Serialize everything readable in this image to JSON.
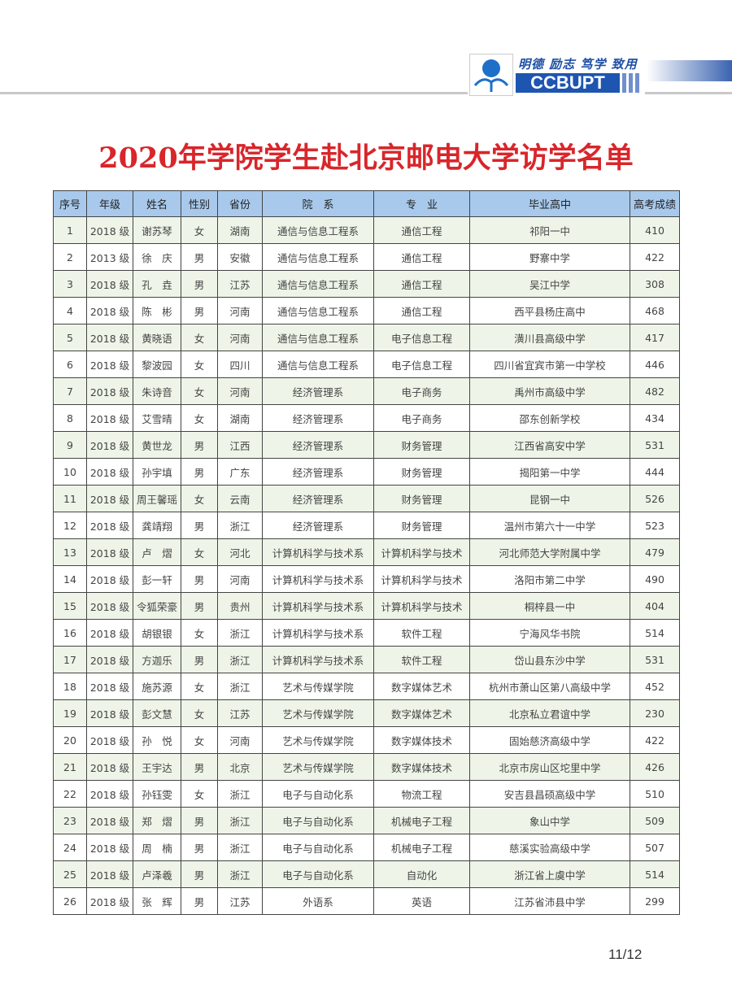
{
  "header": {
    "motto": "明德 励志 笃学 致用",
    "brand": "CCBUPT",
    "brand_color": "#1e55b0"
  },
  "title": "2020年学院学生赴北京邮电大学访学名单",
  "title_color": "#d8262b",
  "table": {
    "columns": [
      "序号",
      "年级",
      "姓名",
      "性别",
      "省份",
      "院　系",
      "专　业",
      "毕业高中",
      "高考成绩"
    ],
    "rows": [
      [
        "1",
        "2018 级",
        "谢苏琴",
        "女",
        "湖南",
        "通信与信息工程系",
        "通信工程",
        "祁阳一中",
        "410"
      ],
      [
        "2",
        "2013 级",
        "徐　庆",
        "男",
        "安徽",
        "通信与信息工程系",
        "通信工程",
        "野寨中学",
        "422"
      ],
      [
        "3",
        "2018 级",
        "孔　垚",
        "男",
        "江苏",
        "通信与信息工程系",
        "通信工程",
        "吴江中学",
        "308"
      ],
      [
        "4",
        "2018 级",
        "陈　彬",
        "男",
        "河南",
        "通信与信息工程系",
        "通信工程",
        "西平县杨庄高中",
        "468"
      ],
      [
        "5",
        "2018 级",
        "黄晓语",
        "女",
        "河南",
        "通信与信息工程系",
        "电子信息工程",
        "潢川县高级中学",
        "417"
      ],
      [
        "6",
        "2018 级",
        "黎波园",
        "女",
        "四川",
        "通信与信息工程系",
        "电子信息工程",
        "四川省宜宾市第一中学校",
        "446"
      ],
      [
        "7",
        "2018 级",
        "朱诗音",
        "女",
        "河南",
        "经济管理系",
        "电子商务",
        "禹州市高级中学",
        "482"
      ],
      [
        "8",
        "2018 级",
        "艾雪晴",
        "女",
        "湖南",
        "经济管理系",
        "电子商务",
        "邵东创新学校",
        "434"
      ],
      [
        "9",
        "2018 级",
        "黄世龙",
        "男",
        "江西",
        "经济管理系",
        "财务管理",
        "江西省高安中学",
        "531"
      ],
      [
        "10",
        "2018 级",
        "孙宇填",
        "男",
        "广东",
        "经济管理系",
        "财务管理",
        "揭阳第一中学",
        "444"
      ],
      [
        "11",
        "2018 级",
        "周王馨瑶",
        "女",
        "云南",
        "经济管理系",
        "财务管理",
        "昆钢一中",
        "526"
      ],
      [
        "12",
        "2018 级",
        "龚靖翔",
        "男",
        "浙江",
        "经济管理系",
        "财务管理",
        "温州市第六十一中学",
        "523"
      ],
      [
        "13",
        "2018 级",
        "卢　熠",
        "女",
        "河北",
        "计算机科学与技术系",
        "计算机科学与技术",
        "河北师范大学附属中学",
        "479"
      ],
      [
        "14",
        "2018 级",
        "彭一轩",
        "男",
        "河南",
        "计算机科学与技术系",
        "计算机科学与技术",
        "洛阳市第二中学",
        "490"
      ],
      [
        "15",
        "2018 级",
        "令狐荣豪",
        "男",
        "贵州",
        "计算机科学与技术系",
        "计算机科学与技术",
        "桐梓县一中",
        "404"
      ],
      [
        "16",
        "2018 级",
        "胡银银",
        "女",
        "浙江",
        "计算机科学与技术系",
        "软件工程",
        "宁海风华书院",
        "514"
      ],
      [
        "17",
        "2018 级",
        "方迦乐",
        "男",
        "浙江",
        "计算机科学与技术系",
        "软件工程",
        "岱山县东沙中学",
        "531"
      ],
      [
        "18",
        "2018 级",
        "施苏源",
        "女",
        "浙江",
        "艺术与传媒学院",
        "数字媒体艺术",
        "杭州市萧山区第八高级中学",
        "452"
      ],
      [
        "19",
        "2018 级",
        "彭文慧",
        "女",
        "江苏",
        "艺术与传媒学院",
        "数字媒体艺术",
        "北京私立君谊中学",
        "230"
      ],
      [
        "20",
        "2018 级",
        "孙　悦",
        "女",
        "河南",
        "艺术与传媒学院",
        "数字媒体技术",
        "固始慈济高级中学",
        "422"
      ],
      [
        "21",
        "2018 级",
        "王宇达",
        "男",
        "北京",
        "艺术与传媒学院",
        "数字媒体技术",
        "北京市房山区坨里中学",
        "426"
      ],
      [
        "22",
        "2018 级",
        "孙钰雯",
        "女",
        "浙江",
        "电子与自动化系",
        "物流工程",
        "安吉县昌硕高级中学",
        "510"
      ],
      [
        "23",
        "2018 级",
        "郑　熠",
        "男",
        "浙江",
        "电子与自动化系",
        "机械电子工程",
        "象山中学",
        "509"
      ],
      [
        "24",
        "2018 级",
        "周　楠",
        "男",
        "浙江",
        "电子与自动化系",
        "机械电子工程",
        "慈溪实验高级中学",
        "507"
      ],
      [
        "25",
        "2018 级",
        "卢泽羲",
        "男",
        "浙江",
        "电子与自动化系",
        "自动化",
        "浙江省上虞中学",
        "514"
      ],
      [
        "26",
        "2018 级",
        "张　辉",
        "男",
        "江苏",
        "外语系",
        "英语",
        "江苏省沛县中学",
        "299"
      ]
    ]
  },
  "page_number": "11/12"
}
